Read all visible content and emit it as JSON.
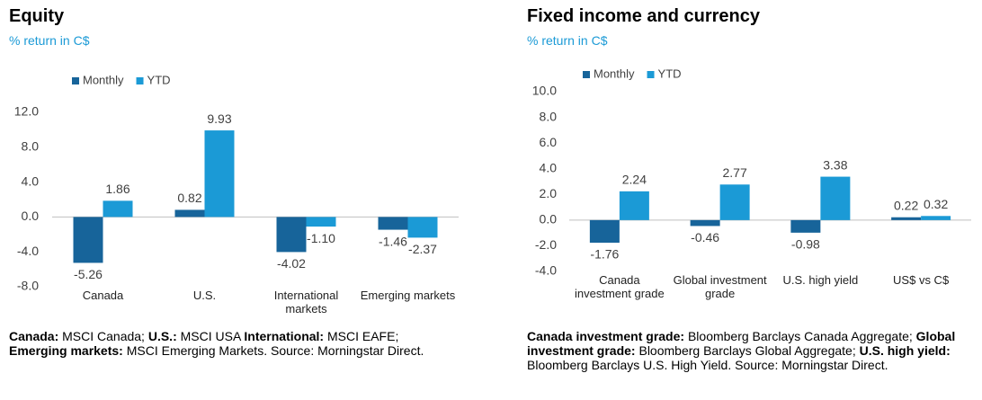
{
  "chart_data": [
    {
      "type": "bar",
      "title": "Equity",
      "subtitle": "% return in C$",
      "categories": [
        "Canada",
        "U.S.",
        "International markets",
        "Emerging markets"
      ],
      "series": [
        {
          "name": "Monthly",
          "color": "#17649a",
          "values": [
            -5.26,
            0.82,
            -4.02,
            -1.46
          ]
        },
        {
          "name": "YTD",
          "color": "#1b9ad6",
          "values": [
            1.86,
            9.93,
            -1.1,
            -2.37
          ],
          "value_labels": [
            "1.86",
            "9.93",
            "-1.10",
            "-2.37"
          ]
        }
      ],
      "ylim": [
        -8,
        12
      ],
      "yticks": [
        {
          "value": -8,
          "label": "-8.0"
        },
        {
          "value": -4,
          "label": "-4.0"
        },
        {
          "value": 0,
          "label": "0.0"
        },
        {
          "value": 4,
          "label": "4.0"
        },
        {
          "value": 8,
          "label": "8.0"
        },
        {
          "value": 12,
          "label": "12.0"
        }
      ],
      "notes": [
        {
          "label": "Canada:",
          "text": "MSCI Canada;"
        },
        {
          "label": "U.S.:",
          "text": "MSCI USA"
        },
        {
          "label": "International:",
          "text": "MSCI EAFE;"
        },
        {
          "label": "Emerging markets:",
          "text": "MSCI Emerging Markets. Source: Morningstar Direct."
        }
      ]
    },
    {
      "type": "bar",
      "title": "Fixed income and currency",
      "subtitle": "% return in C$",
      "categories": [
        "Canada investment grade",
        "Global investment grade",
        "U.S. high yield",
        "US$ vs C$"
      ],
      "series": [
        {
          "name": "Monthly",
          "color": "#17649a",
          "values": [
            -1.76,
            -0.46,
            -0.98,
            0.22
          ]
        },
        {
          "name": "YTD",
          "color": "#1b9ad6",
          "values": [
            2.24,
            2.77,
            3.38,
            0.32
          ]
        }
      ],
      "ylim": [
        -4,
        10
      ],
      "yticks": [
        {
          "value": -4,
          "label": "-4.0"
        },
        {
          "value": -2,
          "label": "-2.0"
        },
        {
          "value": 0,
          "label": "0.0"
        },
        {
          "value": 2,
          "label": "2.0"
        },
        {
          "value": 4,
          "label": "4.0"
        },
        {
          "value": 6,
          "label": "6.0"
        },
        {
          "value": 8,
          "label": "8.0"
        },
        {
          "value": 10,
          "label": "10.0"
        }
      ],
      "notes": [
        {
          "label": "Canada investment grade:",
          "text": "Bloomberg Barclays Canada Aggregate;"
        },
        {
          "label": "Global investment grade:",
          "text": "Bloomberg Barclays Global Aggregate;"
        },
        {
          "label": "U.S. high yield:",
          "text": "Bloomberg Barclays U.S. High Yield. Source: Morningstar Direct."
        }
      ]
    }
  ]
}
